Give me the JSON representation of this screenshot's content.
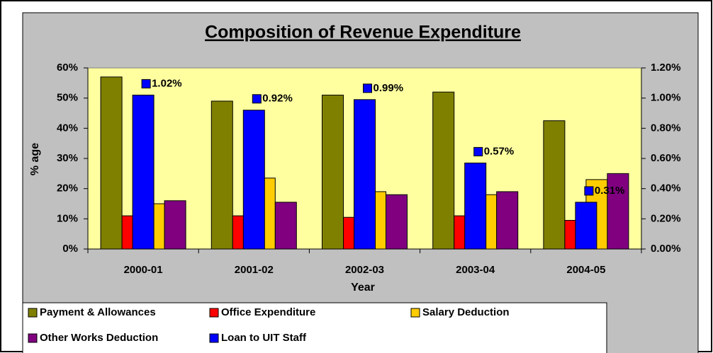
{
  "chart_data": {
    "type": "bar",
    "title": "Composition of Revenue Expenditure",
    "x_label": "Year",
    "y_label": "% age",
    "categories": [
      "2000-01",
      "2001-02",
      "2002-03",
      "2003-04",
      "2004-05"
    ],
    "series": [
      {
        "name": "Payment & Allowances",
        "color": "#808000",
        "values": [
          57,
          49,
          51,
          52,
          42.5
        ]
      },
      {
        "name": "Office Expenditure",
        "color": "#ff0000",
        "values": [
          11,
          11,
          10.5,
          11,
          9.5
        ]
      },
      {
        "name": "Salary Deduction",
        "color": "#ffcc00",
        "values": [
          15,
          23.5,
          19,
          18,
          23
        ]
      },
      {
        "name": "Other Works Deduction",
        "color": "#800080",
        "values": [
          16,
          15.5,
          18,
          19,
          25
        ]
      },
      {
        "name": "Loan to UIT Staff",
        "color": "#0000ff",
        "axis": "y2",
        "values": [
          1.02,
          0.92,
          0.99,
          0.57,
          0.31
        ],
        "value_labels": [
          "1.02%",
          "0.92%",
          "0.99%",
          "0.57%",
          "0.31%"
        ]
      }
    ],
    "ylim": [
      0,
      60
    ],
    "yticks": [
      {
        "value": 0,
        "label": "0%"
      },
      {
        "value": 10,
        "label": "10%"
      },
      {
        "value": 20,
        "label": "20%"
      },
      {
        "value": 30,
        "label": "30%"
      },
      {
        "value": 40,
        "label": "40%"
      },
      {
        "value": 50,
        "label": "50%"
      },
      {
        "value": 60,
        "label": "60%"
      }
    ],
    "y2lim": [
      0,
      1.2
    ],
    "y2ticks": [
      {
        "value": 0,
        "label": "0.00%"
      },
      {
        "value": 0.2,
        "label": "0.20%"
      },
      {
        "value": 0.4,
        "label": "0.40%"
      },
      {
        "value": 0.6,
        "label": "0.60%"
      },
      {
        "value": 0.8,
        "label": "0.80%"
      },
      {
        "value": 1.0,
        "label": "1.00%"
      },
      {
        "value": 1.2,
        "label": "1.20%"
      }
    ],
    "grid": false,
    "legend": "bottom"
  }
}
